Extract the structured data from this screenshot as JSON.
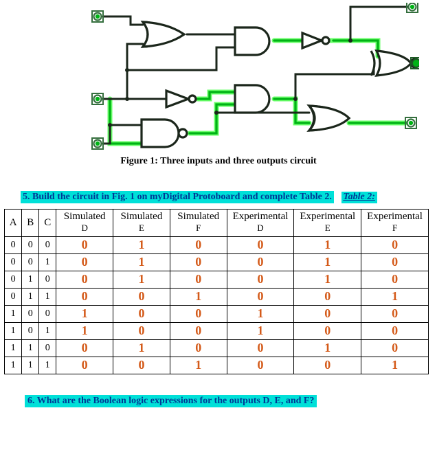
{
  "colors": {
    "highlight": "#00e0d8",
    "ink_blue": "#003a96",
    "wire_green": "#00b315",
    "wire_green_glow": "#6aff6a",
    "pad_ring_outer": "#356f3e",
    "pad_ring_inner": "#00b315",
    "gate_fill": "#ffffff",
    "gate_stroke": "#1b261b",
    "handwriting": "#d45a19"
  },
  "caption": "Figure 1:  Three inputs and three outputs circuit",
  "instruction5": "5.    Build the circuit in Fig. 1 on myDigital Protoboard and complete Table 2.",
  "table2_label": "Table 2:",
  "question6": "6.    What are the Boolean logic expressions for the outputs D, E, and F?",
  "circuit": {
    "type": "logic-diagram",
    "inputs": [
      "A",
      "B",
      "C"
    ],
    "outputs": [
      "D",
      "E",
      "F"
    ],
    "gates": [
      "OR",
      "NOT",
      "NAND",
      "AND",
      "AND",
      "NOT",
      "XNOR",
      "OR"
    ],
    "stroke_width_thick": 4,
    "stroke_width_thin": 2.4,
    "highlight_width": 7
  },
  "truth_table": {
    "type": "table",
    "columns_top": [
      "A",
      "B",
      "C",
      "Simulated",
      "Simulated",
      "Simulated",
      "Experimental",
      "Experimental",
      "Experimental"
    ],
    "columns_sub": [
      "",
      "",
      "",
      "D",
      "E",
      "F",
      "D",
      "E",
      "F"
    ],
    "rows_inputs": [
      [
        0,
        0,
        0
      ],
      [
        0,
        0,
        1
      ],
      [
        0,
        1,
        0
      ],
      [
        0,
        1,
        1
      ],
      [
        1,
        0,
        0
      ],
      [
        1,
        0,
        1
      ],
      [
        1,
        1,
        0
      ],
      [
        1,
        1,
        1
      ]
    ],
    "rows_sim": [
      [
        0,
        1,
        0
      ],
      [
        0,
        1,
        0
      ],
      [
        0,
        1,
        0
      ],
      [
        0,
        0,
        1
      ],
      [
        1,
        0,
        0
      ],
      [
        1,
        0,
        0
      ],
      [
        0,
        1,
        0
      ],
      [
        0,
        0,
        1
      ]
    ],
    "rows_exp": [
      [
        0,
        1,
        0
      ],
      [
        0,
        1,
        0
      ],
      [
        0,
        1,
        0
      ],
      [
        0,
        0,
        1
      ],
      [
        1,
        0,
        0
      ],
      [
        1,
        0,
        0
      ],
      [
        0,
        1,
        0
      ],
      [
        0,
        0,
        1
      ]
    ]
  }
}
